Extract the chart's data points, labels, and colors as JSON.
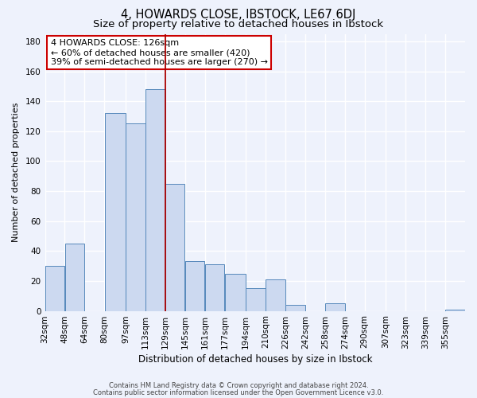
{
  "title": "4, HOWARDS CLOSE, IBSTOCK, LE67 6DJ",
  "subtitle": "Size of property relative to detached houses in Ibstock",
  "xlabel": "Distribution of detached houses by size in Ibstock",
  "ylabel": "Number of detached properties",
  "bar_labels": [
    "32sqm",
    "48sqm",
    "64sqm",
    "80sqm",
    "97sqm",
    "113sqm",
    "129sqm",
    "145sqm",
    "161sqm",
    "177sqm",
    "194sqm",
    "210sqm",
    "226sqm",
    "242sqm",
    "258sqm",
    "274sqm",
    "290sqm",
    "307sqm",
    "323sqm",
    "339sqm",
    "355sqm"
  ],
  "bar_lefts": [
    32,
    48,
    64,
    80,
    97,
    113,
    129,
    145,
    161,
    177,
    194,
    210,
    226,
    242,
    258,
    274,
    290,
    307,
    323,
    339,
    355
  ],
  "bar_widths": [
    16,
    16,
    16,
    17,
    16,
    16,
    16,
    16,
    16,
    17,
    16,
    16,
    16,
    16,
    16,
    16,
    17,
    16,
    16,
    16,
    16
  ],
  "bar_values": [
    30,
    45,
    0,
    132,
    125,
    148,
    85,
    33,
    31,
    25,
    15,
    21,
    4,
    0,
    5,
    0,
    0,
    0,
    0,
    0,
    1
  ],
  "bar_color": "#ccd9f0",
  "bar_edge_color": "#5588bb",
  "vline_x": 129,
  "vline_color": "#aa0000",
  "annotation_text": "4 HOWARDS CLOSE: 126sqm\n← 60% of detached houses are smaller (420)\n39% of semi-detached houses are larger (270) →",
  "annotation_box_color": "#ffffff",
  "annotation_box_edge": "#cc0000",
  "xlim": [
    32,
    371
  ],
  "ylim": [
    0,
    185
  ],
  "yticks": [
    0,
    20,
    40,
    60,
    80,
    100,
    120,
    140,
    160,
    180
  ],
  "xtick_positions": [
    32,
    48,
    64,
    80,
    97,
    113,
    129,
    145,
    161,
    177,
    194,
    210,
    226,
    242,
    258,
    274,
    290,
    307,
    323,
    339,
    355
  ],
  "footer1": "Contains HM Land Registry data © Crown copyright and database right 2024.",
  "footer2": "Contains public sector information licensed under the Open Government Licence v3.0.",
  "bg_color": "#eef2fc",
  "plot_bg_color": "#eef2fc",
  "grid_color": "#ffffff",
  "title_fontsize": 10.5,
  "subtitle_fontsize": 9.5,
  "tick_fontsize": 7.5,
  "annotation_fontsize": 8
}
